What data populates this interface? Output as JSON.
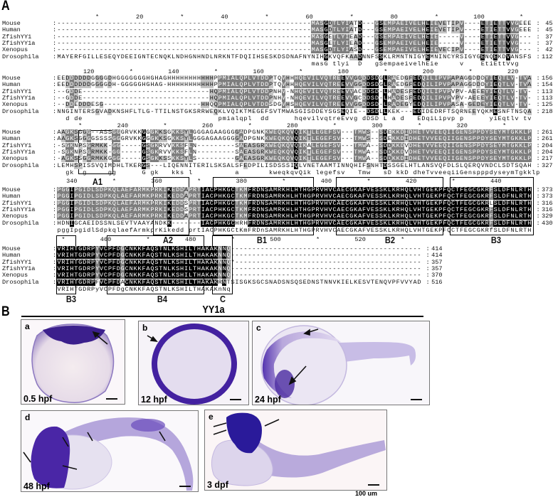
{
  "panel_labels": {
    "a": "A",
    "b": "B"
  },
  "alignment": {
    "blocks": [
      {
        "start": 1,
        "ruler": [
          "*",
          "20",
          "*",
          "40",
          "*",
          "60",
          "*",
          "80",
          "*",
          "100",
          "*"
        ],
        "rows": [
          {
            "name": "Mouse",
            "seq": "------------------------------------------------------------MASGDTLYIATD---GSEMPAEIVELHEIEVETIPV----ETIETTVVGEEE",
            "end": "45"
          },
          {
            "name": "Human",
            "seq": "------------------------------------------------------------MASGDTLYIATD---GSEMPAEIVELHEIEVETIPV----ETIETTVVGEEE",
            "end": "45"
          },
          {
            "name": "ZfishYY1",
            "seq": "------------------------------------------------------------MASGETLYIEAD---GSEMPAEIVELHEIE-----V----ETIETTVVG---",
            "end": "37"
          },
          {
            "name": "ZfishYY1a",
            "seq": "------------------------------------------------------------MASGETLYIEAD---GSEMPAEIVELHEIE-----V----ETIETTVVG---",
            "end": "37"
          },
          {
            "name": "Xenopus",
            "seq": "------------------------------------------------------------MASGDTLYIASD---GSEMPAEIVELHEIEVECIPV----ETIETTVVG---",
            "end": "42"
          },
          {
            "name": "Drosophila",
            "seq": "MAYERFGILLESEQYDEEIGNTECNQKLNDHGNHNDLNRKNTFDQIIHSESKDSDNAFNYNIHGKVQFKAADNNFSSKLRMNTNIGYEMNINCYRSIGYGENQEKDVANSFS",
            "end": "112"
          }
        ],
        "consensus": "                                                            masG tlyi  D   gSempaeivelhEie     v    EtiEttVvg   "
      },
      {
        "start": 113,
        "ruler": [
          "120",
          "*",
          "140",
          "*",
          "160",
          "*",
          "180",
          "*",
          "200",
          "*",
          "220"
        ],
        "rows": [
          {
            "name": "Mouse",
            "seq": "EEDDDDDDGGGGDHGGGGGGGHGHAGHHHHHHHHHHHPPMIALQPLVTDDPTQVHHHQEVILVQTREEVVGGDDSDGLRAEDGFEDQILIPVPAPAGGDDDYIEQTLV-TVA",
            "end": "156"
          },
          {
            "name": "Human",
            "seq": "EEDDDDDDGGGGDH-GGGGGHGHAG-HHHHHHHHHHHPPMIALQPLVTDDPTQVHHHQEVILVQTREEVVGGDDSDGLRAEDGFEDQILIPVPAPAGGDDDYIEQTLV-TVA",
            "end": "154"
          },
          {
            "name": "ZfishYY1",
            "seq": "--GDDE------------------------------HQPMIALQPLVTDDPNHV-NHQEVILVQTREEVVACDDSD-LHADESFEDQILIPVPVPV-AEEEYIEQTLV-TV-",
            "end": "113"
          },
          {
            "name": "ZfishYY1a",
            "seq": "--GDDE------------------------------HQPMIALQPLVTDDPNHV-NHQEVILVQTREEVVGCDDSD-LHADESFEDQILIPVPVPV-AEEEYIEQTLV-TV-",
            "end": "113"
          },
          {
            "name": "Xenopus",
            "seq": "--DDEDDDESG-----------------------HHQQPMIALQPLVTDDSDGVHSHQEVILVQTREEVVGGDDSD-LRADEGYEDQILIPVPASA-GEDEYIEQTLV-TV-",
            "end": "125"
          },
          {
            "name": "Drosophila",
            "seq": "NNGINTERSGVADKNSHFLTLG-TTILNSTGKSRRWEQKLVQIKTMEGEFSVTMWASGISDDEYSGSEQIE--DSDLLKEK---EDIDEDRFTSQRNEEYQKMESNFTNSQA",
            "end": "218"
          }
        ],
        "consensus": "  d de                                pmialqpl  dd      hqevilvqtreEvvg dDSD L a d   EDqiLipvp p      yiEqtlv tv "
      },
      {
        "start": 225,
        "ruler": [
          "*",
          "240",
          "*",
          "260",
          "*",
          "280",
          "*",
          "300",
          "*",
          "320",
          "*"
        ],
        "rows": [
          {
            "name": "Mouse",
            "seq": "AAGKSGGG--ASSGGGRVKKGGGKKSGKKSYLGGGAGAAGGGGADPGNKKWEQKQVQIKTLEGEFSV---TMWS--SDEKKDIDHETVVEEQIIGENSPPDYSEYMTGKKLP",
            "end": "261"
          },
          {
            "name": "Human",
            "seq": "AAGKSGGGGSSSSGGGRVKKGGGKKSGKKSYLGGGAGAAGGGGADPGNKKWEQKQVQIKTLEGEFSV---TMWS--SDEKKDIDHETVVEEQIIGENSPPDYSEYMTGKKLP",
            "end": "261"
          },
          {
            "name": "ZfishYY1",
            "seq": "-SGKNPSGRMKK-GG-----GSGKRVVKKSFLN---------SAEASGRKWEQKQVQIKALEGEFSV---TMWA--SDDKKDVDHETVVEEQIIGENSPPDYSEYMTGKKLP",
            "end": "204"
          },
          {
            "name": "ZfishYY1a",
            "seq": "-SGKNPSGRMKK-GG-----GSGKRVVKKSFLN---------SAEASGRKWEQKQVQIKTLEGEFSV---TMWA--SDDKKDVDHETVVEEQIIGENSPPDYSEYMTGKKLP",
            "end": "204"
          },
          {
            "name": "Xenopus",
            "seq": "-AGKSSGGRMKKGGG-----GSGKKSSKKSYLS---------GAEASGRKWEQKQVQIKTLEGEFSV---TMWA--SDDKKDIDHETVVEEQIIGENSPPDYSEYMTGKKLP",
            "end": "217"
          },
          {
            "name": "Drosophila",
            "seq": "LEMHSPISSVQIMDHLTKERGS---LIQENNITERILSKSALSFEDPILISDSSSIQLVNETAAMTINNQHIFSNHTDSSGELHTLANSVQFDLSLQERQVNDCLSDTSQAH",
            "end": "327"
          }
        ],
        "consensus": "  gk  g     gg      G gk   kks l          a       kweqkqvQik legefsv   Tmw   sD kkD dheTvveeqiiGenspppdyseymTgkklp"
      },
      {
        "start": 337,
        "ruler": [
          "340",
          "*",
          "360",
          "*",
          "380",
          "*",
          "400",
          "*",
          "420",
          "*",
          "440"
        ],
        "rows": [
          {
            "name": "Mouse",
            "seq": "PGGIPGIDLSDPKQLAEFARMKPRKIKEDDAPRTIACPHKGCTKMFRDNSAMRKHLHTHGPRVHVCAECGKAFVESSKLKRHQLVHTGEKPFQCTFEGCGKRFSLDFNLRTH",
            "end": "373"
          },
          {
            "name": "Human",
            "seq": "PGGIPGIDLSDPKQLAEFARMKPRKIKEDDAPRTIACPHKGCTKMFRDNSAMRKHLHTHGPRVHVCAECGKAFVESSKLKRHQLVHTGEKPFQCTFEGCGKRFSLDFNLRTH",
            "end": "373"
          },
          {
            "name": "ZfishYY1",
            "seq": "PGGIPGIDLSDPKQLAEFARMKPRKIKEDDSPRTIACPHKGCTKMFRDNSAMRKHLHTHGPRVHVCAECGKAFVESSKLKRHQLVHTGEKPFQCTFEGCGKRLSLDFNLRTH",
            "end": "316"
          },
          {
            "name": "ZfishYY1a",
            "seq": "PGGIPGIDLSDPKQLAEFARMKPRKIKEDDSPRTIACPHKGCTKMFRDNSAMRKHLHTHGPRVHVCAECGKAFVESSKLKRHQLVHTGEKPFQCTFEGCGKRFSLDFNLRTH",
            "end": "316"
          },
          {
            "name": "Xenopus",
            "seq": "PGGIPGIDLSDPKQLAEFARMKPRKIKEDDAPRTIACPHKGCTKMFRDNSAMRKHLHTHGPRVHVCAECGKAFVESSKLKRHQLVHTGEKPFQCTFEGCGKRFSLDFNLRTH",
            "end": "329"
          },
          {
            "name": "Drosophila",
            "seq": "HDNIGCAEIDSSNLSEVTVAAYANDKK-------IACPHKGCHRHFRDNSAMRKHLHTHGPRVHVCAECGKAFVESSKLKRHQLVHTGEKPFQCTFEGCGKRFSLDFNLRTH",
            "end": "430"
          }
        ],
        "consensus": "pggIpgidlSdpkqlaefArmkprKikedd prtIACPHKGCtKmFRDnSAMRKHLHTHGPRVHVCAECGKAFVESSKLKRHQLVHTGEKPFQCTFEGCGKRfSLDFNLRTH"
      },
      {
        "start": 449,
        "ruler": [
          "*",
          "460",
          "*",
          "480",
          "*",
          "500",
          "*",
          "520",
          "*"
        ],
        "rows": [
          {
            "name": "Mouse",
            "seq": "VRIHTGDRPYVCPFDGCNKKFAQSTNLKSHILTHAKAKNNQ---------------------------------------------",
            "end": "414"
          },
          {
            "name": "Human",
            "seq": "VRIHTGDRPYVCPFDGCNKKFAQSTNLKSHILTHAKAKNNQ---------------------------------------------",
            "end": "414"
          },
          {
            "name": "ZfishYY1",
            "seq": "VRIHTGDRPYVCPFDGCNKKFAQSTNLKSHILTHAKAKNNQ*--------------------------------------------",
            "end": "357"
          },
          {
            "name": "ZfishYY1a",
            "seq": "VRIHTGDRPYVCPFDGCNKKFAQSTNLKSHILTHAKAKNNQ---------------------------------------------",
            "end": "357"
          },
          {
            "name": "Xenopus",
            "seq": "VRIHTGDRPYVCPFDGCNKKFAQSTNLKSHILTHAKAKNNQ---------------------------------------------",
            "end": "370"
          },
          {
            "name": "Drosophila",
            "seq": "VRIHTGDRPFVCPFDACNKKFAQSTNLKSHILTHAKAKRNTSISGKSGCSNADSNSQSEDNSTNNVKIELKESVTENQVPFVVYAD",
            "end": "516"
          }
        ],
        "consensus": "VRIHTGDRPyVCPFDgCNKKFAQSTNLKSHILTHAKAKnNq"
      }
    ],
    "domains": {
      "A1": "A1",
      "A2": "A2",
      "B1": "B1",
      "B2": "B2",
      "B3": "B3",
      "B3b": "B3",
      "B4": "B4",
      "C": "C"
    },
    "shading_colors": {
      "identical": "#000000",
      "high": "#7d7d7d",
      "medium": "#c4c4c4"
    }
  },
  "expression": {
    "title": "YY1a",
    "stain_color": "#4a2aa0",
    "panels": [
      {
        "letter": "a",
        "stage": "0.5 hpf"
      },
      {
        "letter": "b",
        "stage": "12 hpf"
      },
      {
        "letter": "c",
        "stage": "24 hpf"
      },
      {
        "letter": "d",
        "stage": "48 hpf"
      },
      {
        "letter": "e",
        "stage": "3 dpf"
      }
    ],
    "scale_label": "100 um"
  }
}
